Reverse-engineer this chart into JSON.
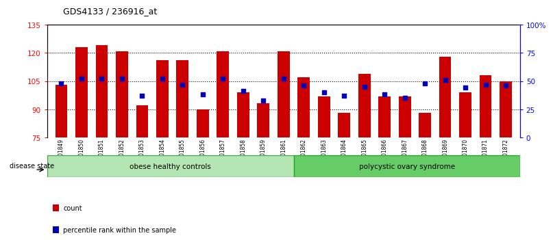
{
  "title": "GDS4133 / 236916_at",
  "samples": [
    "GSM201849",
    "GSM201850",
    "GSM201851",
    "GSM201852",
    "GSM201853",
    "GSM201854",
    "GSM201855",
    "GSM201856",
    "GSM201857",
    "GSM201858",
    "GSM201859",
    "GSM201861",
    "GSM201862",
    "GSM201863",
    "GSM201864",
    "GSM201865",
    "GSM201866",
    "GSM201867",
    "GSM201868",
    "GSM201869",
    "GSM201870",
    "GSM201871",
    "GSM201872"
  ],
  "counts": [
    103,
    123,
    124,
    121,
    92,
    116,
    116,
    90,
    121,
    99,
    93,
    121,
    107,
    97,
    88,
    109,
    97,
    97,
    88,
    118,
    99,
    108,
    105
  ],
  "percentiles": [
    48,
    52,
    52,
    52,
    37,
    52,
    47,
    38,
    52,
    41,
    33,
    52,
    46,
    40,
    37,
    45,
    38,
    35,
    48,
    51,
    44,
    47,
    46
  ],
  "group1_label": "obese healthy controls",
  "group1_count": 12,
  "group2_label": "polycystic ovary syndrome",
  "group2_count": 11,
  "disease_state_label": "disease state",
  "bar_color": "#cc0000",
  "dot_color": "#0000bb",
  "ylim_left": [
    75,
    135
  ],
  "ylim_right": [
    0,
    100
  ],
  "yticks_left": [
    75,
    90,
    105,
    120,
    135
  ],
  "yticks_right": [
    0,
    25,
    50,
    75,
    100
  ],
  "ytick_labels_right": [
    "0",
    "25",
    "50",
    "75",
    "100%"
  ],
  "grid_values": [
    90,
    105,
    120
  ],
  "group1_color": "#b3e6b3",
  "group2_color": "#66cc66",
  "legend_count_label": "count",
  "legend_pct_label": "percentile rank within the sample"
}
